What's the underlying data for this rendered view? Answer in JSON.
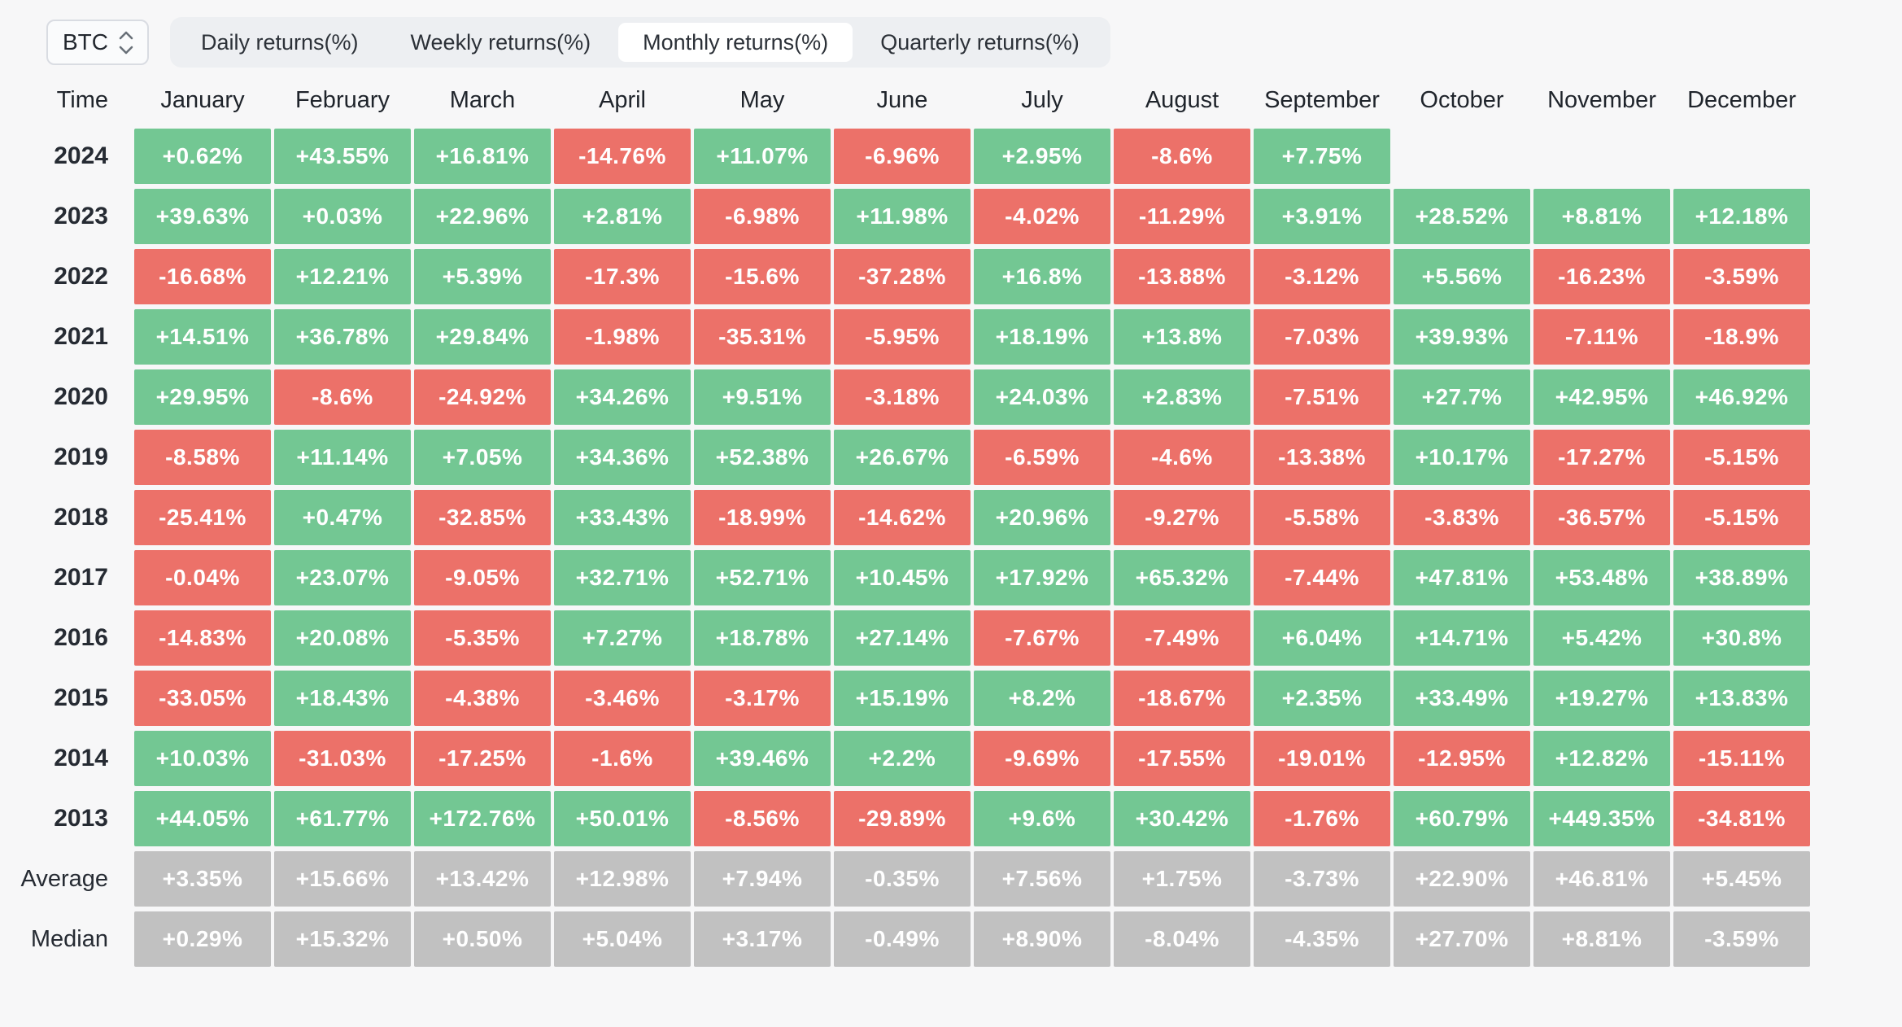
{
  "controls": {
    "symbol": {
      "value": "BTC"
    },
    "tabs": [
      {
        "label": "Daily returns(%)",
        "selected": false
      },
      {
        "label": "Weekly returns(%)",
        "selected": false
      },
      {
        "label": "Monthly returns(%)",
        "selected": true
      },
      {
        "label": "Quarterly returns(%)",
        "selected": false
      }
    ]
  },
  "palette": {
    "green": "#73c793",
    "red": "#ec7169",
    "gray": "#c1c1c1"
  },
  "chart_data": {
    "type": "heatmap",
    "title": "BTC Monthly returns(%)",
    "time_header": "Time",
    "columns": [
      "January",
      "February",
      "March",
      "April",
      "May",
      "June",
      "July",
      "August",
      "September",
      "October",
      "November",
      "December"
    ],
    "rows": [
      {
        "label": "2024",
        "type": "year",
        "values": [
          "+0.62%",
          "+43.55%",
          "+16.81%",
          "-14.76%",
          "+11.07%",
          "-6.96%",
          "+2.95%",
          "-8.6%",
          "+7.75%",
          "",
          "",
          ""
        ]
      },
      {
        "label": "2023",
        "type": "year",
        "values": [
          "+39.63%",
          "+0.03%",
          "+22.96%",
          "+2.81%",
          "-6.98%",
          "+11.98%",
          "-4.02%",
          "-11.29%",
          "+3.91%",
          "+28.52%",
          "+8.81%",
          "+12.18%"
        ]
      },
      {
        "label": "2022",
        "type": "year",
        "values": [
          "-16.68%",
          "+12.21%",
          "+5.39%",
          "-17.3%",
          "-15.6%",
          "-37.28%",
          "+16.8%",
          "-13.88%",
          "-3.12%",
          "+5.56%",
          "-16.23%",
          "-3.59%"
        ]
      },
      {
        "label": "2021",
        "type": "year",
        "values": [
          "+14.51%",
          "+36.78%",
          "+29.84%",
          "-1.98%",
          "-35.31%",
          "-5.95%",
          "+18.19%",
          "+13.8%",
          "-7.03%",
          "+39.93%",
          "-7.11%",
          "-18.9%"
        ]
      },
      {
        "label": "2020",
        "type": "year",
        "values": [
          "+29.95%",
          "-8.6%",
          "-24.92%",
          "+34.26%",
          "+9.51%",
          "-3.18%",
          "+24.03%",
          "+2.83%",
          "-7.51%",
          "+27.7%",
          "+42.95%",
          "+46.92%"
        ]
      },
      {
        "label": "2019",
        "type": "year",
        "values": [
          "-8.58%",
          "+11.14%",
          "+7.05%",
          "+34.36%",
          "+52.38%",
          "+26.67%",
          "-6.59%",
          "-4.6%",
          "-13.38%",
          "+10.17%",
          "-17.27%",
          "-5.15%"
        ]
      },
      {
        "label": "2018",
        "type": "year",
        "values": [
          "-25.41%",
          "+0.47%",
          "-32.85%",
          "+33.43%",
          "-18.99%",
          "-14.62%",
          "+20.96%",
          "-9.27%",
          "-5.58%",
          "-3.83%",
          "-36.57%",
          "-5.15%"
        ]
      },
      {
        "label": "2017",
        "type": "year",
        "values": [
          "-0.04%",
          "+23.07%",
          "-9.05%",
          "+32.71%",
          "+52.71%",
          "+10.45%",
          "+17.92%",
          "+65.32%",
          "-7.44%",
          "+47.81%",
          "+53.48%",
          "+38.89%"
        ]
      },
      {
        "label": "2016",
        "type": "year",
        "values": [
          "-14.83%",
          "+20.08%",
          "-5.35%",
          "+7.27%",
          "+18.78%",
          "+27.14%",
          "-7.67%",
          "-7.49%",
          "+6.04%",
          "+14.71%",
          "+5.42%",
          "+30.8%"
        ]
      },
      {
        "label": "2015",
        "type": "year",
        "values": [
          "-33.05%",
          "+18.43%",
          "-4.38%",
          "-3.46%",
          "-3.17%",
          "+15.19%",
          "+8.2%",
          "-18.67%",
          "+2.35%",
          "+33.49%",
          "+19.27%",
          "+13.83%"
        ]
      },
      {
        "label": "2014",
        "type": "year",
        "values": [
          "+10.03%",
          "-31.03%",
          "-17.25%",
          "-1.6%",
          "+39.46%",
          "+2.2%",
          "-9.69%",
          "-17.55%",
          "-19.01%",
          "-12.95%",
          "+12.82%",
          "-15.11%"
        ]
      },
      {
        "label": "2013",
        "type": "year",
        "values": [
          "+44.05%",
          "+61.77%",
          "+172.76%",
          "+50.01%",
          "-8.56%",
          "-29.89%",
          "+9.6%",
          "+30.42%",
          "-1.76%",
          "+60.79%",
          "+449.35%",
          "-34.81%"
        ]
      },
      {
        "label": "Average",
        "type": "stat",
        "values": [
          "+3.35%",
          "+15.66%",
          "+13.42%",
          "+12.98%",
          "+7.94%",
          "-0.35%",
          "+7.56%",
          "+1.75%",
          "-3.73%",
          "+22.90%",
          "+46.81%",
          "+5.45%"
        ]
      },
      {
        "label": "Median",
        "type": "stat",
        "values": [
          "+0.29%",
          "+15.32%",
          "+0.50%",
          "+5.04%",
          "+3.17%",
          "-0.49%",
          "+8.90%",
          "-8.04%",
          "-4.35%",
          "+27.70%",
          "+8.81%",
          "-3.59%"
        ]
      }
    ]
  }
}
